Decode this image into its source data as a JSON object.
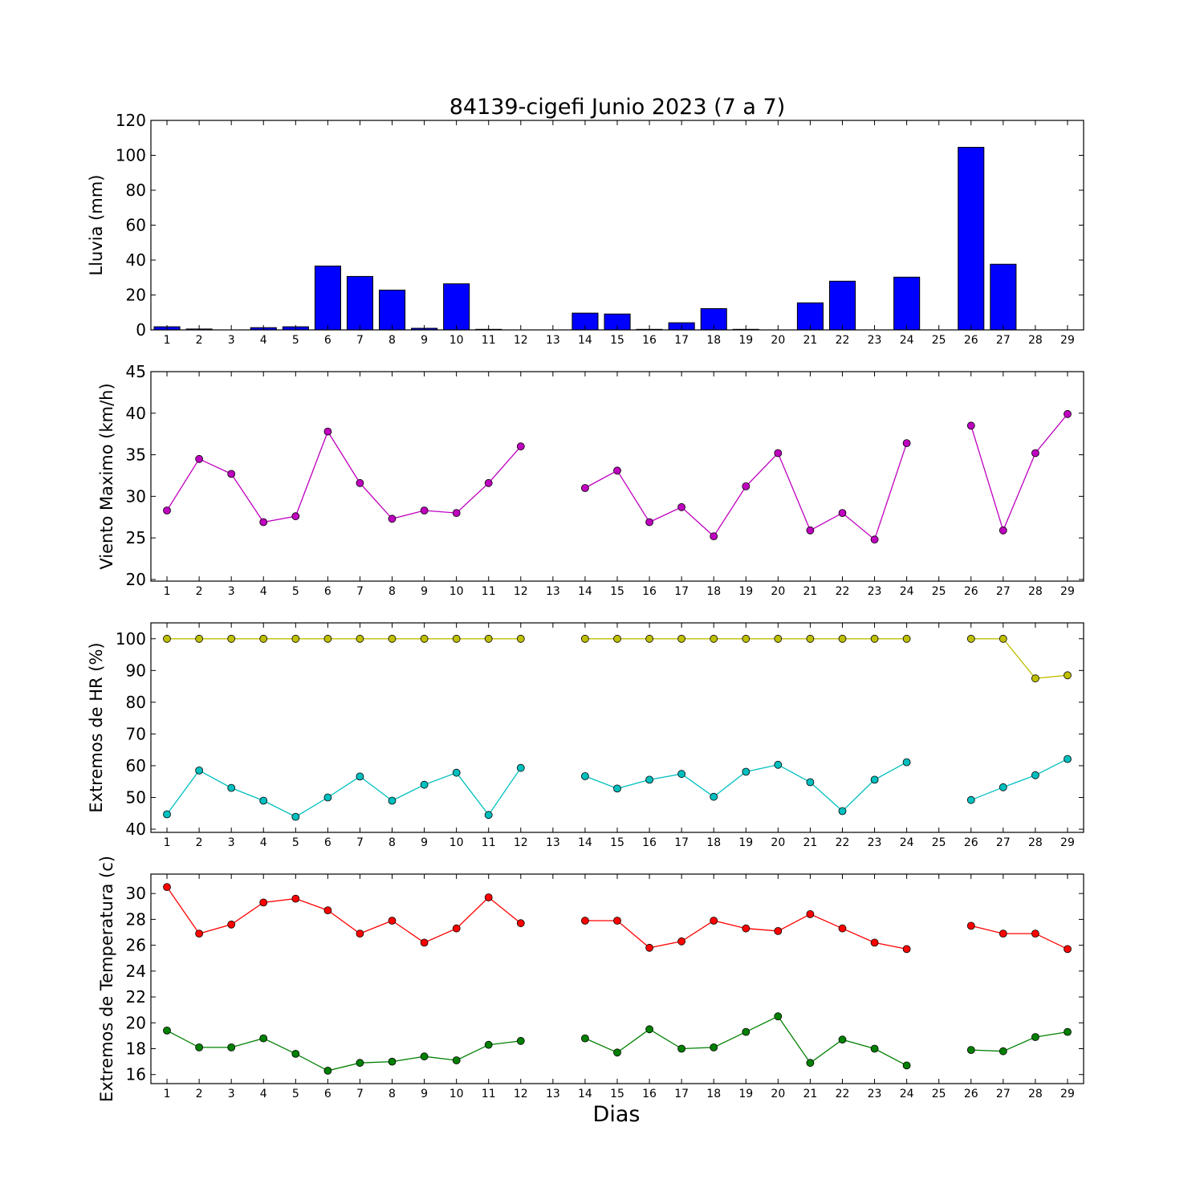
{
  "chart_data": [
    {
      "type": "bar",
      "title": "84139-cigefi Junio 2023  (7 a 7)",
      "ylabel": "Lluvia (mm)",
      "xlabel": "",
      "x": [
        1,
        2,
        3,
        4,
        5,
        6,
        7,
        8,
        9,
        10,
        11,
        12,
        13,
        14,
        15,
        16,
        17,
        18,
        19,
        20,
        21,
        22,
        23,
        24,
        25,
        26,
        27,
        28,
        29
      ],
      "xlim": [
        0.5,
        29.5
      ],
      "ylim": [
        0,
        120
      ],
      "yticks": [
        0,
        20,
        40,
        60,
        80,
        100,
        120
      ],
      "grid": false,
      "series": [
        {
          "color": "#0000ff",
          "values": [
            1.8,
            0.5,
            0,
            1.3,
            1.8,
            36.6,
            30.6,
            22.8,
            0.9,
            26.4,
            0.3,
            0,
            null,
            9.6,
            9.1,
            0.3,
            4.1,
            12.2,
            0.3,
            0,
            15.5,
            27.9,
            0,
            30.2,
            0,
            104.6,
            37.6,
            0,
            0
          ]
        }
      ]
    },
    {
      "type": "line",
      "title": "",
      "ylabel": "Viento Maximo (km/h)",
      "xlabel": "",
      "x": [
        1,
        2,
        3,
        4,
        5,
        6,
        7,
        8,
        9,
        10,
        11,
        12,
        13,
        14,
        15,
        16,
        17,
        18,
        19,
        20,
        21,
        22,
        23,
        24,
        25,
        26,
        27,
        28,
        29
      ],
      "xlim": [
        0.5,
        29.5
      ],
      "ylim": [
        19.8,
        45
      ],
      "yticks": [
        20,
        25,
        30,
        35,
        40,
        45
      ],
      "grid": false,
      "series": [
        {
          "color": "#bf00bf",
          "values": [
            28.3,
            34.5,
            32.7,
            26.9,
            27.6,
            37.8,
            31.6,
            27.3,
            28.3,
            28.0,
            31.6,
            36.0,
            null,
            31.0,
            33.1,
            26.9,
            28.7,
            25.2,
            31.2,
            35.2,
            25.9,
            28.0,
            24.8,
            36.4,
            null,
            38.5,
            25.9,
            35.2,
            39.9
          ]
        }
      ]
    },
    {
      "type": "line",
      "title": "",
      "ylabel": "Extremos de HR (%)",
      "xlabel": "",
      "x": [
        1,
        2,
        3,
        4,
        5,
        6,
        7,
        8,
        9,
        10,
        11,
        12,
        13,
        14,
        15,
        16,
        17,
        18,
        19,
        20,
        21,
        22,
        23,
        24,
        25,
        26,
        27,
        28,
        29
      ],
      "xlim": [
        0.5,
        29.5
      ],
      "ylim": [
        39,
        105
      ],
      "yticks": [
        40,
        50,
        60,
        70,
        80,
        90,
        100
      ],
      "grid": false,
      "series": [
        {
          "color": "#bfbf00",
          "values": [
            100,
            100,
            100,
            100,
            100,
            100,
            100,
            100,
            100,
            100,
            100,
            100,
            null,
            100,
            100,
            100,
            100,
            100,
            100,
            100,
            100,
            100,
            100,
            100,
            null,
            100,
            100,
            87.5,
            88.5
          ]
        },
        {
          "color": "#00bfbf",
          "values": [
            44.7,
            58.5,
            53.0,
            49.0,
            43.9,
            50.0,
            56.6,
            49.0,
            54.0,
            57.8,
            44.5,
            59.3,
            null,
            56.7,
            52.8,
            55.6,
            57.4,
            50.2,
            58.1,
            60.3,
            54.8,
            45.7,
            55.6,
            61.1,
            null,
            49.2,
            53.2,
            57.0,
            62.1
          ]
        }
      ]
    },
    {
      "type": "line",
      "title": "",
      "ylabel": "Extremos de Temperatura (c)",
      "xlabel": "Dias",
      "x": [
        1,
        2,
        3,
        4,
        5,
        6,
        7,
        8,
        9,
        10,
        11,
        12,
        13,
        14,
        15,
        16,
        17,
        18,
        19,
        20,
        21,
        22,
        23,
        24,
        25,
        26,
        27,
        28,
        29
      ],
      "xlim": [
        0.5,
        29.5
      ],
      "ylim": [
        15.3,
        31.5
      ],
      "yticks": [
        16,
        18,
        20,
        22,
        24,
        26,
        28,
        30
      ],
      "grid": false,
      "series": [
        {
          "color": "#ff0000",
          "values": [
            30.5,
            26.9,
            27.6,
            29.3,
            29.6,
            28.7,
            26.9,
            27.9,
            26.2,
            27.3,
            29.7,
            27.7,
            null,
            27.9,
            27.9,
            25.8,
            26.3,
            27.9,
            27.3,
            27.1,
            28.4,
            27.3,
            26.2,
            25.7,
            null,
            27.5,
            26.9,
            26.9,
            25.7
          ]
        },
        {
          "color": "#008000",
          "values": [
            19.4,
            18.1,
            18.1,
            18.8,
            17.6,
            16.3,
            16.9,
            17.0,
            17.4,
            17.1,
            18.3,
            18.6,
            null,
            18.8,
            17.7,
            19.5,
            18.0,
            18.1,
            19.3,
            20.5,
            16.9,
            18.7,
            18.0,
            16.7,
            null,
            17.9,
            17.8,
            18.9,
            19.3
          ]
        }
      ]
    }
  ]
}
